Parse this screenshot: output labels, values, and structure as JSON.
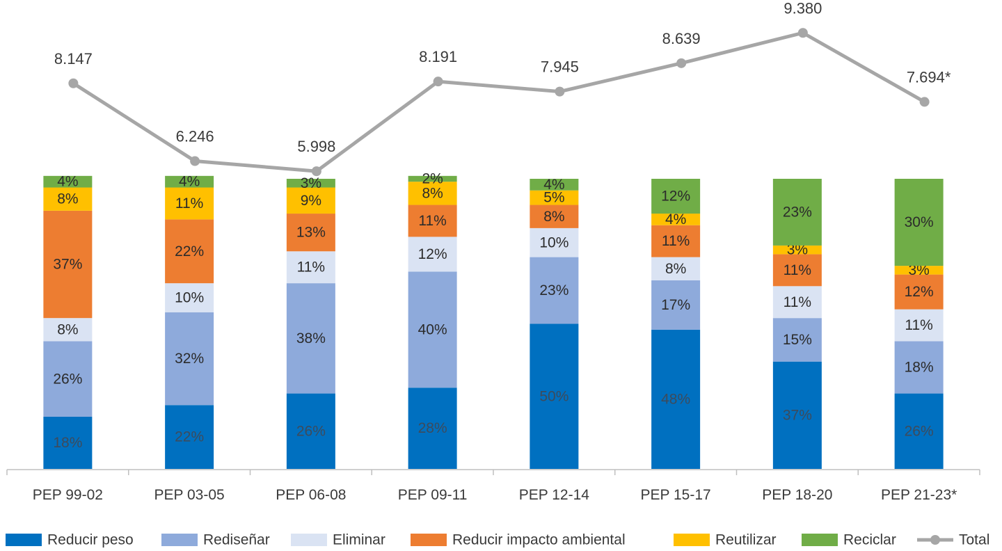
{
  "chart_data": {
    "type": "bar",
    "stacked": true,
    "categories": [
      "PEP 99-02",
      "PEP 03-05",
      "PEP 06-08",
      "PEP 09-11",
      "PEP 12-14",
      "PEP 15-17",
      "PEP 18-20",
      "PEP 21-23*"
    ],
    "series": [
      {
        "name": "Reducir peso",
        "color": "#0070c0",
        "values": [
          18,
          22,
          26,
          28,
          50,
          48,
          37,
          26
        ],
        "labels": [
          "18%",
          "22%",
          "26%",
          "28%",
          "50%",
          "48%",
          "37%",
          "26%"
        ]
      },
      {
        "name": "Rediseñar",
        "color": "#8eaadb",
        "values": [
          26,
          32,
          38,
          40,
          23,
          17,
          15,
          18
        ],
        "labels": [
          "26%",
          "32%",
          "38%",
          "40%",
          "23%",
          "17%",
          "15%",
          "18%"
        ]
      },
      {
        "name": "Eliminar",
        "color": "#dae3f3",
        "values": [
          8,
          10,
          11,
          12,
          10,
          8,
          11,
          11
        ],
        "labels": [
          "8%",
          "10%",
          "11%",
          "12%",
          "10%",
          "8%",
          "11%",
          "11%"
        ]
      },
      {
        "name": "Reducir impacto ambiental",
        "color": "#ed7d31",
        "values": [
          37,
          22,
          13,
          11,
          8,
          11,
          11,
          12
        ],
        "labels": [
          "37%",
          "22%",
          "13%",
          "11%",
          "8%",
          "11%",
          "11%",
          "12%"
        ]
      },
      {
        "name": "Reutilizar",
        "color": "#ffc000",
        "values": [
          8,
          11,
          9,
          8,
          5,
          4,
          3,
          3
        ],
        "labels": [
          "8%",
          "11%",
          "9%",
          "8%",
          "5%",
          "4%",
          "3%",
          "3%"
        ]
      },
      {
        "name": "Reciclar",
        "color": "#70ad47",
        "values": [
          4,
          4,
          3,
          2,
          4,
          12,
          23,
          30
        ],
        "labels": [
          "4%",
          "4%",
          "3%",
          "2%",
          "4%",
          "12%",
          "23%",
          "30%"
        ]
      }
    ],
    "line": {
      "name": "Total",
      "color": "#a6a6a6",
      "values": [
        8147,
        6246,
        5998,
        8191,
        7945,
        8639,
        9380,
        7694
      ],
      "labels": [
        "8.147",
        "6.246",
        "5.998",
        "8.191",
        "7.945",
        "8.639",
        "9.380",
        "7.694*"
      ]
    },
    "title": "",
    "xlabel": "",
    "ylabel": "",
    "ylim": [
      0,
      100
    ],
    "grid": false,
    "legend_position": "bottom"
  }
}
